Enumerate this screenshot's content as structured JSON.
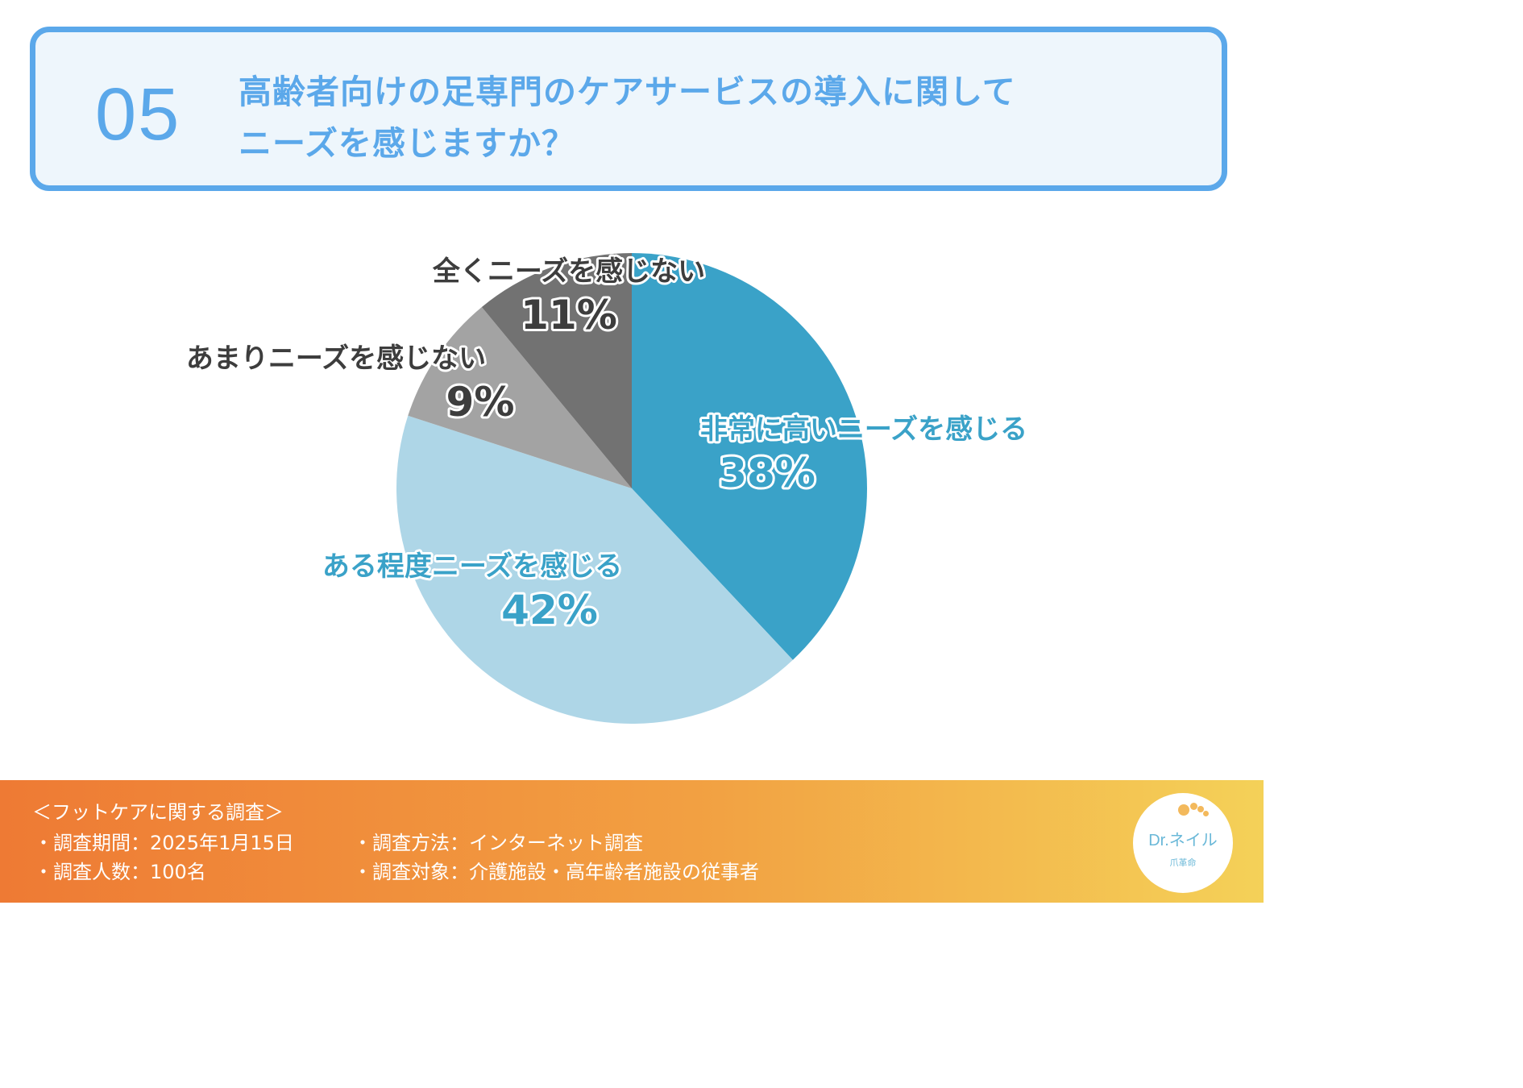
{
  "header": {
    "number": "05",
    "title_line1": "高齢者向けの足専門のケアサービスの導入に関して",
    "title_line2": "ニーズを感じますか？"
  },
  "chart_data": {
    "type": "pie",
    "title": "",
    "slices": [
      {
        "label": "非常に高いニーズを感じる",
        "value": 38,
        "display": "38%",
        "color": "#3aa2c8",
        "label_color": "#3aa2c8"
      },
      {
        "label": "ある程度ニーズを感じる",
        "value": 42,
        "display": "42%",
        "color": "#aed6e7",
        "label_color": "#3aa2c8"
      },
      {
        "label": "あまりニーズを感じない",
        "value": 9,
        "display": "9%",
        "color": "#a3a3a3",
        "label_color": "#3d3d3d"
      },
      {
        "label": "全くニーズを感じない",
        "value": 11,
        "display": "11%",
        "color": "#727272",
        "label_color": "#3d3d3d"
      }
    ],
    "start": "12 o'clock",
    "direction": "clockwise"
  },
  "footer": {
    "title": "＜フットケアに関する調査＞",
    "period": "・調査期間：2025年1月15日",
    "method": "・調査方法：インターネット調査",
    "count": "・調査人数：100名",
    "target": "・調査対象：介護施設・高年齢者施設の従事者",
    "logo_main": "Dr.ネイル",
    "logo_sub": "爪革命"
  },
  "colors": {
    "accent": "#5ba8ea",
    "header_bg": "#eef6fc",
    "footer_gradient": [
      "#ee7a34",
      "#f4d158"
    ]
  }
}
